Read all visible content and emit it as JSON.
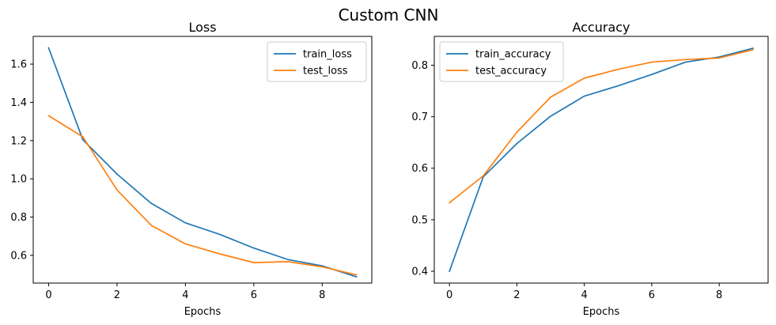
{
  "suptitle": "Custom CNN",
  "colors": {
    "train": "#1f77b4",
    "test": "#ff7f0e"
  },
  "chart_data": [
    {
      "type": "line",
      "title": "Loss",
      "xlabel": "Epochs",
      "ylabel": "",
      "x": [
        0,
        1,
        2,
        3,
        4,
        5,
        6,
        7,
        8,
        9
      ],
      "xlim": [
        -0.45,
        9.45
      ],
      "ylim": [
        0.455,
        1.745
      ],
      "xticks": [
        0,
        2,
        4,
        6,
        8
      ],
      "xtick_labels": [
        "0",
        "2",
        "4",
        "6",
        "8"
      ],
      "yticks": [
        0.6,
        0.8,
        1.0,
        1.2,
        1.4,
        1.6
      ],
      "ytick_labels": [
        "0.6",
        "0.8",
        "1.0",
        "1.2",
        "1.4",
        "1.6"
      ],
      "legend_position": "top-right",
      "grid": false,
      "series": [
        {
          "name": "train_loss",
          "color": "#1f77b4",
          "values": [
            1.685,
            1.205,
            1.025,
            0.872,
            0.77,
            0.71,
            0.638,
            0.578,
            0.545,
            0.488
          ]
        },
        {
          "name": "test_loss",
          "color": "#ff7f0e",
          "values": [
            1.33,
            1.22,
            0.942,
            0.757,
            0.66,
            0.608,
            0.562,
            0.567,
            0.54,
            0.498
          ]
        }
      ]
    },
    {
      "type": "line",
      "title": "Accuracy",
      "xlabel": "Epochs",
      "ylabel": "",
      "x": [
        0,
        1,
        2,
        3,
        4,
        5,
        6,
        7,
        8,
        9
      ],
      "xlim": [
        -0.45,
        9.45
      ],
      "ylim": [
        0.377,
        0.856
      ],
      "xticks": [
        0,
        2,
        4,
        6,
        8
      ],
      "xtick_labels": [
        "0",
        "2",
        "4",
        "6",
        "8"
      ],
      "yticks": [
        0.4,
        0.5,
        0.6,
        0.7,
        0.8
      ],
      "ytick_labels": [
        "0.4",
        "0.5",
        "0.6",
        "0.7",
        "0.8"
      ],
      "legend_position": "top-left",
      "grid": false,
      "series": [
        {
          "name": "train_accuracy",
          "color": "#1f77b4",
          "values": [
            0.4,
            0.583,
            0.648,
            0.701,
            0.74,
            0.76,
            0.782,
            0.806,
            0.816,
            0.833
          ]
        },
        {
          "name": "test_accuracy",
          "color": "#ff7f0e",
          "values": [
            0.533,
            0.585,
            0.67,
            0.738,
            0.775,
            0.792,
            0.806,
            0.811,
            0.814,
            0.83
          ]
        }
      ]
    }
  ]
}
